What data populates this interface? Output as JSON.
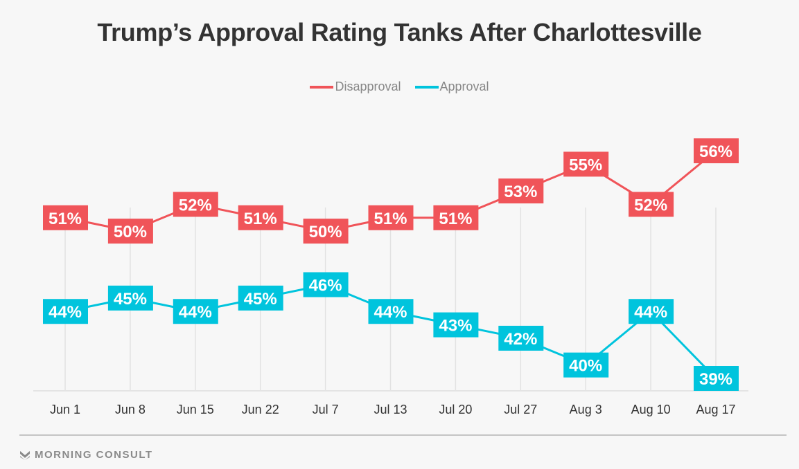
{
  "chart_data": {
    "type": "line",
    "title": "Trump’s Approval Rating Tanks After Charlottesville",
    "xlabel": "",
    "ylabel": "",
    "categories": [
      "Jun 1",
      "Jun 8",
      "Jun 15",
      "Jun 22",
      "Jul 7",
      "Jul 13",
      "Jul 20",
      "Jul 27",
      "Aug 3",
      "Aug 10",
      "Aug 17"
    ],
    "series": [
      {
        "name": "Disapproval",
        "color": "#f05459",
        "values": [
          51,
          50,
          52,
          51,
          50,
          51,
          51,
          53,
          55,
          52,
          56
        ]
      },
      {
        "name": "Approval",
        "color": "#00c4dd",
        "values": [
          44,
          45,
          44,
          45,
          46,
          44,
          43,
          42,
          40,
          44,
          39
        ]
      }
    ],
    "value_format": "{v}%",
    "ylim": [
      38.5,
      56.5
    ],
    "grid": "vertical",
    "legend": "top-center"
  },
  "footer": {
    "brand": "MORNING CONSULT"
  }
}
